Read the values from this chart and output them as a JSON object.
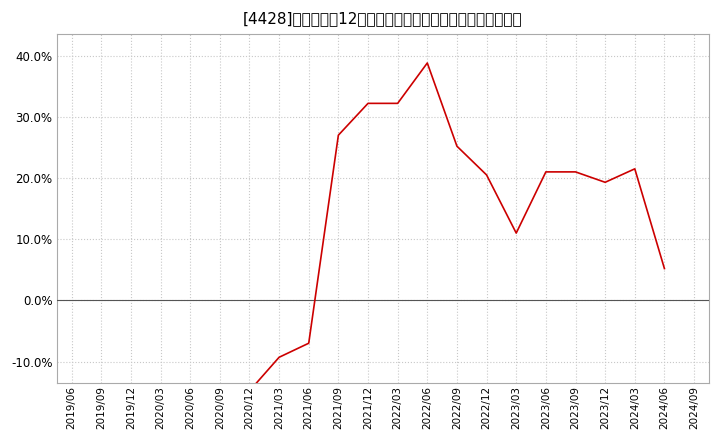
{
  "title": "[4428]　売上高の12か月移動合計の対前年同期増減率の推移",
  "line_color": "#cc0000",
  "background_color": "#ffffff",
  "grid_color": "#c8c8c8",
  "ylim": [
    -0.135,
    0.435
  ],
  "yticks": [
    -0.1,
    0.0,
    0.1,
    0.2,
    0.3,
    0.4
  ],
  "dates": [
    "2019/06",
    "2019/09",
    "2019/12",
    "2020/03",
    "2020/06",
    "2020/09",
    "2020/12",
    "2021/03",
    "2021/06",
    "2021/09",
    "2021/12",
    "2022/03",
    "2022/06",
    "2022/09",
    "2022/12",
    "2023/03",
    "2023/06",
    "2023/09",
    "2023/12",
    "2024/03",
    "2024/06",
    "2024/09"
  ],
  "values": [
    null,
    null,
    null,
    null,
    null,
    null,
    -0.148,
    -0.093,
    -0.07,
    0.27,
    0.322,
    0.322,
    0.388,
    0.252,
    0.205,
    0.11,
    0.21,
    0.21,
    0.193,
    0.215,
    0.052,
    null
  ],
  "title_fontsize": 11,
  "tick_fontsize": 7.5
}
